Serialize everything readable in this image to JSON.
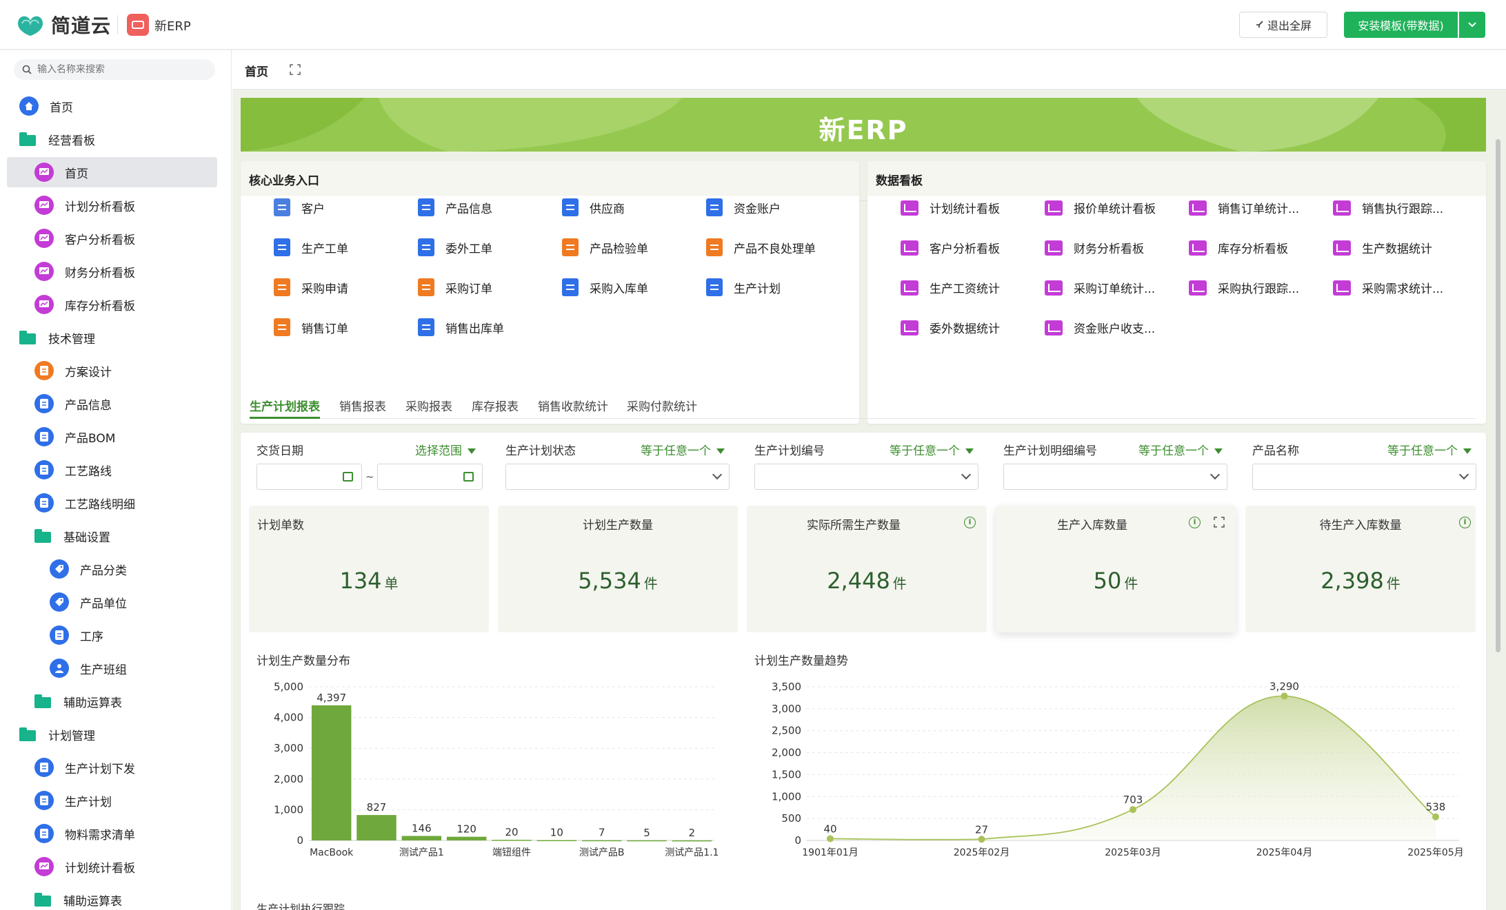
{
  "header": {
    "brand": "简道云",
    "app_name": "新ERP",
    "exit_fullscreen": "退出全屏",
    "install_template": "安装模板(带数据)"
  },
  "sidebar": {
    "search_placeholder": "输入名称来搜索",
    "items": [
      {
        "label": "首页",
        "level": 0,
        "icon": "home-icon",
        "color": "#2f6fe8"
      },
      {
        "label": "经营看板",
        "level": 0,
        "icon": "folder-icon"
      },
      {
        "label": "首页",
        "level": 1,
        "icon": "dashboard-icon",
        "color": "#c33cd6",
        "active": true
      },
      {
        "label": "计划分析看板",
        "level": 1,
        "icon": "dashboard-icon",
        "color": "#c33cd6"
      },
      {
        "label": "客户分析看板",
        "level": 1,
        "icon": "dashboard-icon",
        "color": "#c33cd6"
      },
      {
        "label": "财务分析看板",
        "level": 1,
        "icon": "dashboard-icon",
        "color": "#c33cd6"
      },
      {
        "label": "库存分析看板",
        "level": 1,
        "icon": "dashboard-icon",
        "color": "#c33cd6"
      },
      {
        "label": "技术管理",
        "level": 0,
        "icon": "folder-icon"
      },
      {
        "label": "方案设计",
        "level": 1,
        "icon": "form-icon",
        "color": "#f07a22"
      },
      {
        "label": "产品信息",
        "level": 1,
        "icon": "form-icon",
        "color": "#2f6fe8"
      },
      {
        "label": "产品BOM",
        "level": 1,
        "icon": "form-icon",
        "color": "#2f6fe8"
      },
      {
        "label": "工艺路线",
        "level": 1,
        "icon": "form-icon",
        "color": "#2f6fe8"
      },
      {
        "label": "工艺路线明细",
        "level": 1,
        "icon": "form-icon",
        "color": "#2f6fe8"
      },
      {
        "label": "基础设置",
        "level": 1,
        "icon": "folder-icon"
      },
      {
        "label": "产品分类",
        "level": 2,
        "icon": "tag-icon",
        "color": "#2f6fe8"
      },
      {
        "label": "产品单位",
        "level": 2,
        "icon": "tag-icon",
        "color": "#2f6fe8"
      },
      {
        "label": "工序",
        "level": 2,
        "icon": "form-icon",
        "color": "#2f6fe8"
      },
      {
        "label": "生产班组",
        "level": 2,
        "icon": "user-icon",
        "color": "#2f6fe8"
      },
      {
        "label": "辅助运算表",
        "level": 1,
        "icon": "folder-icon"
      },
      {
        "label": "计划管理",
        "level": 0,
        "icon": "folder-icon"
      },
      {
        "label": "生产计划下发",
        "level": 1,
        "icon": "form-icon",
        "color": "#2f6fe8"
      },
      {
        "label": "生产计划",
        "level": 1,
        "icon": "form-icon",
        "color": "#2f6fe8"
      },
      {
        "label": "物料需求清单",
        "level": 1,
        "icon": "form-icon",
        "color": "#2f6fe8"
      },
      {
        "label": "计划统计看板",
        "level": 1,
        "icon": "dashboard-icon",
        "color": "#c33cd6"
      },
      {
        "label": "辅助运算表",
        "level": 1,
        "icon": "folder-icon"
      }
    ]
  },
  "main": {
    "tab_home": "首页",
    "banner_title": "新ERP",
    "core_entry": {
      "title": "核心业务入口",
      "items": [
        {
          "label": "客户",
          "color": "#4a7fe0",
          "icon": "user-icon"
        },
        {
          "label": "产品信息",
          "color": "#2f6fe8",
          "icon": "form-icon"
        },
        {
          "label": "供应商",
          "color": "#2f6fe8",
          "icon": "form-icon"
        },
        {
          "label": "资金账户",
          "color": "#2f6fe8",
          "icon": "form-icon"
        },
        {
          "label": "生产工单",
          "color": "#2f6fe8",
          "icon": "form-icon"
        },
        {
          "label": "委外工单",
          "color": "#2f6fe8",
          "icon": "form-icon"
        },
        {
          "label": "产品检验单",
          "color": "#f07a22",
          "icon": "box-icon"
        },
        {
          "label": "产品不良处理单",
          "color": "#f07a22",
          "icon": "flow-icon"
        },
        {
          "label": "采购申请",
          "color": "#f07a22",
          "icon": "form-icon"
        },
        {
          "label": "采购订单",
          "color": "#f07a22",
          "icon": "form-icon"
        },
        {
          "label": "采购入库单",
          "color": "#2f6fe8",
          "icon": "form-icon"
        },
        {
          "label": "生产计划",
          "color": "#2f6fe8",
          "icon": "form-icon"
        },
        {
          "label": "销售订单",
          "color": "#f07a22",
          "icon": "form-icon"
        },
        {
          "label": "销售出库单",
          "color": "#2f6fe8",
          "icon": "form-icon"
        }
      ]
    },
    "data_board": {
      "title": "数据看板",
      "items": [
        "计划统计看板",
        "报价单统计看板",
        "销售订单统计...",
        "销售执行跟踪...",
        "客户分析看板",
        "财务分析看板",
        "库存分析看板",
        "生产数据统计",
        "生产工资统计",
        "采购订单统计...",
        "采购执行跟踪...",
        "采购需求统计...",
        "委外数据统计",
        "资金账户收支..."
      ]
    },
    "report_tabs": [
      "生产计划报表",
      "销售报表",
      "采购报表",
      "库存报表",
      "销售收款统计",
      "采购付款统计"
    ],
    "filters": [
      {
        "label": "交货日期",
        "op": "选择范围"
      },
      {
        "label": "生产计划状态",
        "op": "等于任意一个"
      },
      {
        "label": "生产计划编号",
        "op": "等于任意一个"
      },
      {
        "label": "生产计划明细编号",
        "op": "等于任意一个"
      },
      {
        "label": "产品名称",
        "op": "等于任意一个"
      }
    ],
    "date_sep": "~",
    "kpis": [
      {
        "title": "计划单数",
        "value": "134",
        "unit": "单"
      },
      {
        "title": "计划生产数量",
        "value": "5,534",
        "unit": "件"
      },
      {
        "title": "实际所需生产数量",
        "value": "2,448",
        "unit": "件"
      },
      {
        "title": "生产入库数量",
        "value": "50",
        "unit": "件"
      },
      {
        "title": "待生产入库数量",
        "value": "2,398",
        "unit": "件"
      }
    ],
    "bottom_label": "生产计划执行跟踪"
  },
  "chart_data": [
    {
      "type": "bar",
      "title": "计划生产数量分布",
      "categories": [
        "MacBook",
        "",
        "测试产品1",
        "",
        "端钮组件",
        "",
        "测试产品B",
        "",
        "测试产品1.1"
      ],
      "values": [
        4397,
        827,
        146,
        120,
        20,
        10,
        7,
        5,
        2
      ],
      "value_labels": [
        "4,397",
        "827",
        "146",
        "120",
        "20",
        "10",
        "7",
        "5",
        "2"
      ],
      "y_ticks": [
        "0",
        "1,000",
        "2,000",
        "3,000",
        "4,000",
        "5,000"
      ],
      "ylim": [
        0,
        5000
      ],
      "color": "#6fa83c"
    },
    {
      "type": "area",
      "title": "计划生产数量趋势",
      "x": [
        "1901年01月",
        "2025年02月",
        "2025年03月",
        "2025年04月",
        "2025年05月"
      ],
      "values": [
        40,
        27,
        703,
        3290,
        538
      ],
      "value_labels": [
        "40",
        "27",
        "703",
        "3,290",
        "538"
      ],
      "y_ticks": [
        "0",
        "500",
        "1,000",
        "1,500",
        "2,000",
        "2,500",
        "3,000",
        "3,500"
      ],
      "ylim": [
        0,
        3500
      ],
      "color": "#a9c25a"
    }
  ]
}
